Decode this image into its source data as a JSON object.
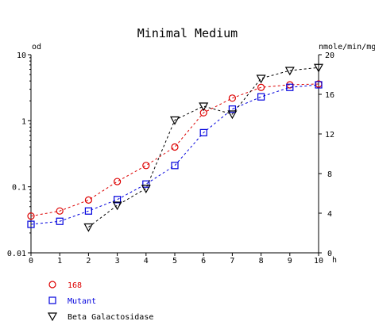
{
  "chart_data": {
    "type": "line",
    "title": "Minimal Medium",
    "xlabel": "h",
    "ylabel_left": "od",
    "ylabel_right": "nmole/min/mg",
    "x_ticks": [
      "0",
      "1",
      "2",
      "3",
      "4",
      "5",
      "6",
      "7",
      "8",
      "9",
      "10"
    ],
    "y_left_ticks": [
      "0.01",
      "0.1",
      "1",
      "10"
    ],
    "y_right_ticks": [
      "0",
      "4",
      "8",
      "12",
      "16",
      "20"
    ],
    "xlim": [
      0,
      10
    ],
    "ylim_left": [
      0.01,
      10
    ],
    "ylim_left_scale": "log",
    "ylim_right": [
      0,
      20
    ],
    "grid": false,
    "legend_position": "bottom-left",
    "series": [
      {
        "name": "168",
        "axis": "left",
        "marker": "circle",
        "color": "#dd0000",
        "x": [
          0,
          1,
          2,
          3,
          4,
          5,
          6,
          7,
          8,
          9,
          10
        ],
        "y": [
          0.036,
          0.043,
          0.063,
          0.12,
          0.21,
          0.4,
          1.32,
          2.2,
          3.2,
          3.5,
          3.6
        ]
      },
      {
        "name": "Mutant",
        "axis": "left",
        "marker": "square",
        "color": "#0000dd",
        "x": [
          0,
          1,
          2,
          3,
          4,
          5,
          6,
          7,
          8,
          9,
          10
        ],
        "y": [
          0.027,
          0.03,
          0.043,
          0.064,
          0.11,
          0.21,
          0.66,
          1.5,
          2.3,
          3.2,
          3.5
        ]
      },
      {
        "name": "Beta Galactosidase",
        "axis": "right",
        "marker": "triangle-down",
        "color": "#000000",
        "x": [
          2,
          3,
          4,
          5,
          6,
          7,
          8,
          9,
          10
        ],
        "y": [
          2.6,
          4.8,
          6.5,
          13.4,
          14.8,
          14.0,
          17.6,
          18.4,
          18.7
        ]
      }
    ]
  }
}
